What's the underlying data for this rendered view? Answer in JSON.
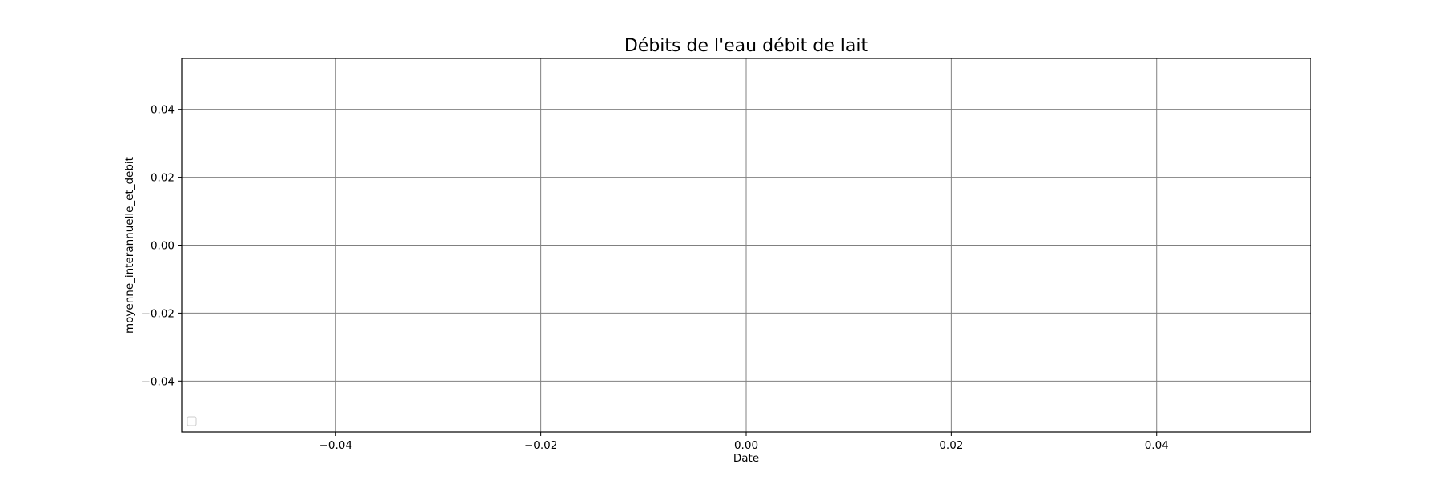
{
  "chart_data": {
    "type": "line",
    "title": "Débits de l'eau débit de lait",
    "xlabel": "Date",
    "ylabel": "moyenne_interannuelle_et_debit",
    "xlim": [
      -0.055,
      0.055
    ],
    "ylim": [
      -0.055,
      0.055
    ],
    "x_ticks": [
      -0.04,
      -0.02,
      0.0,
      0.02,
      0.04
    ],
    "x_tick_labels": [
      "−0.04",
      "−0.02",
      "0.00",
      "0.02",
      "0.04"
    ],
    "y_ticks": [
      0.04,
      0.02,
      0.0,
      -0.02,
      -0.04
    ],
    "y_tick_labels": [
      "0.04",
      "0.02",
      "0.00",
      "−0.02",
      "−0.04"
    ],
    "grid": true,
    "legend": {
      "placement": "lower-left",
      "entries": []
    },
    "series": []
  }
}
